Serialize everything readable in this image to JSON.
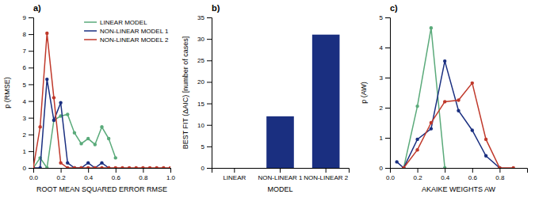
{
  "chart_data": [
    {
      "type": "line",
      "title": "a)",
      "xlabel": "ROOT MEAN SQUARED ERROR RMSE",
      "ylabel": "p (RMSE)",
      "xlim": [
        0,
        1
      ],
      "ylim": [
        0,
        9
      ],
      "xticks": [
        {
          "value": 0.0,
          "label": "0.0"
        },
        0.2,
        0.4,
        0.6,
        0.8,
        {
          "value": 1.0,
          "label": "1.0"
        }
      ],
      "yticks": [
        0,
        1,
        2,
        3,
        4,
        5,
        6,
        7,
        8,
        9
      ],
      "marker": "circle",
      "legend": "upper right",
      "series": [
        {
          "name": "LINEAR MODEL",
          "color": "#5aaa7a",
          "x": [
            0.0,
            0.05,
            0.1,
            0.15,
            0.2,
            0.25,
            0.3,
            0.35,
            0.4,
            0.45,
            0.5,
            0.55,
            0.6
          ],
          "values": [
            0.0,
            0.6,
            0.0,
            2.85,
            3.1,
            3.2,
            2.1,
            1.45,
            1.75,
            1.4,
            2.45,
            1.75,
            0.6
          ]
        },
        {
          "name": "NON-LINEAR MODEL 1",
          "color": "#1a2f80",
          "x": [
            0.0,
            0.05,
            0.1,
            0.15,
            0.2,
            0.25,
            0.3,
            0.35,
            0.4,
            0.45,
            0.5,
            0.55
          ],
          "values": [
            0.0,
            0.0,
            5.3,
            2.85,
            3.9,
            0.3,
            0.0,
            0.0,
            0.3,
            0.0,
            0.3,
            0.0
          ]
        },
        {
          "name": "NON-LINEAR MODEL 2",
          "color": "#c0392b",
          "x": [
            0.0,
            0.05,
            0.1,
            0.15,
            0.2,
            0.25,
            0.3,
            0.35,
            0.4,
            0.45,
            0.5,
            0.55,
            0.6,
            0.65,
            0.7,
            0.75,
            0.8,
            0.85,
            0.9,
            0.95,
            1.0
          ],
          "values": [
            0.0,
            2.45,
            8.05,
            4.2,
            0.3,
            0.0,
            0.0,
            0.0,
            0.0,
            0.0,
            0.0,
            0.0,
            0.0,
            0.0,
            0.0,
            0.0,
            0.0,
            0.0,
            0.0,
            0.0,
            0.0
          ]
        }
      ]
    },
    {
      "type": "bar",
      "title": "b)",
      "xlabel": "MODEL",
      "ylabel": "BEST FIT (ΔAIC) [number of cases]",
      "categories": [
        "LINEAR",
        "NON-LINEAR 1",
        "NON-LINEAR 2"
      ],
      "values": [
        0,
        12,
        31
      ],
      "color": "#1a2f80",
      "ylim": [
        0,
        35
      ],
      "yticks": [
        0,
        5,
        10,
        15,
        20,
        25,
        30,
        35
      ]
    },
    {
      "type": "line",
      "title": "c)",
      "xlabel": "AKAIKE WEIGHTS AW",
      "ylabel": "p (AW)",
      "xlim": [
        0,
        1
      ],
      "ylim": [
        0,
        5
      ],
      "xticks": [
        {
          "value": 0.0,
          "label": "0.0"
        },
        0.2,
        0.4,
        0.6,
        0.8
      ],
      "yticks": [
        0,
        1,
        2,
        3,
        4,
        5
      ],
      "marker": "circle",
      "series": [
        {
          "name": "LINEAR MODEL",
          "color": "#5aaa7a",
          "x": [
            0.1,
            0.2,
            0.3,
            0.4
          ],
          "values": [
            0.0,
            2.05,
            4.65,
            0.0
          ]
        },
        {
          "name": "NON-LINEAR MODEL 1",
          "color": "#1a2f80",
          "x": [
            0.05,
            0.1,
            0.2,
            0.3,
            0.4,
            0.5,
            0.6,
            0.7,
            0.8
          ],
          "values": [
            0.2,
            0.0,
            0.95,
            1.3,
            3.55,
            1.9,
            1.25,
            0.4,
            0.0
          ]
        },
        {
          "name": "NON-LINEAR MODEL 2",
          "color": "#c0392b",
          "x": [
            0.1,
            0.2,
            0.3,
            0.4,
            0.5,
            0.6,
            0.7,
            0.8,
            0.9
          ],
          "values": [
            0.0,
            0.6,
            1.5,
            2.2,
            2.25,
            2.82,
            0.95,
            0.0,
            0.0
          ]
        }
      ]
    }
  ]
}
